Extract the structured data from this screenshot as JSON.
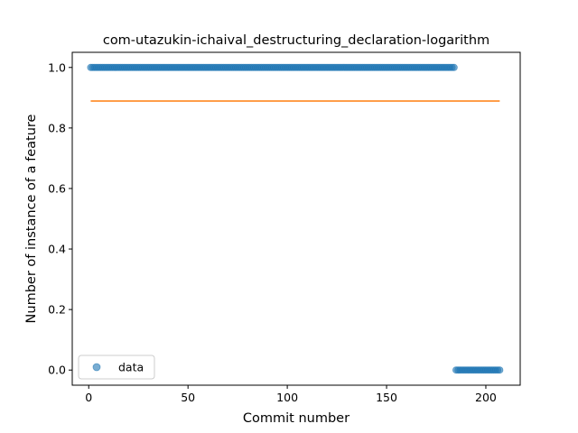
{
  "chart_data": {
    "type": "scatter",
    "title": "com-utazukin-ichaival_destructuring_declaration-logarithm",
    "xlabel": "Commit number",
    "ylabel": "Number of instance of a feature",
    "xlim": [
      -8.3,
      217.3
    ],
    "ylim": [
      -0.05,
      1.05
    ],
    "xticks": [
      0,
      50,
      100,
      150,
      200
    ],
    "yticks": [
      0.0,
      0.2,
      0.4,
      0.6,
      0.8,
      1.0
    ],
    "ytick_labels": [
      "0.0",
      "0.2",
      "0.4",
      "0.6",
      "0.8",
      "1.0"
    ],
    "grid": false,
    "legend": {
      "position": "lower-left",
      "entries": [
        "data"
      ]
    },
    "series": [
      {
        "name": "data",
        "kind": "points",
        "color": "#1f77b4",
        "segments": [
          {
            "x_start": 1,
            "x_end": 184,
            "y": 1
          },
          {
            "x_start": 185,
            "x_end": 207,
            "y": 0
          }
        ]
      },
      {
        "kind": "line",
        "color": "#ff7f0e",
        "x": [
          1,
          207
        ],
        "y": [
          0.8889,
          0.8889
        ]
      }
    ]
  }
}
